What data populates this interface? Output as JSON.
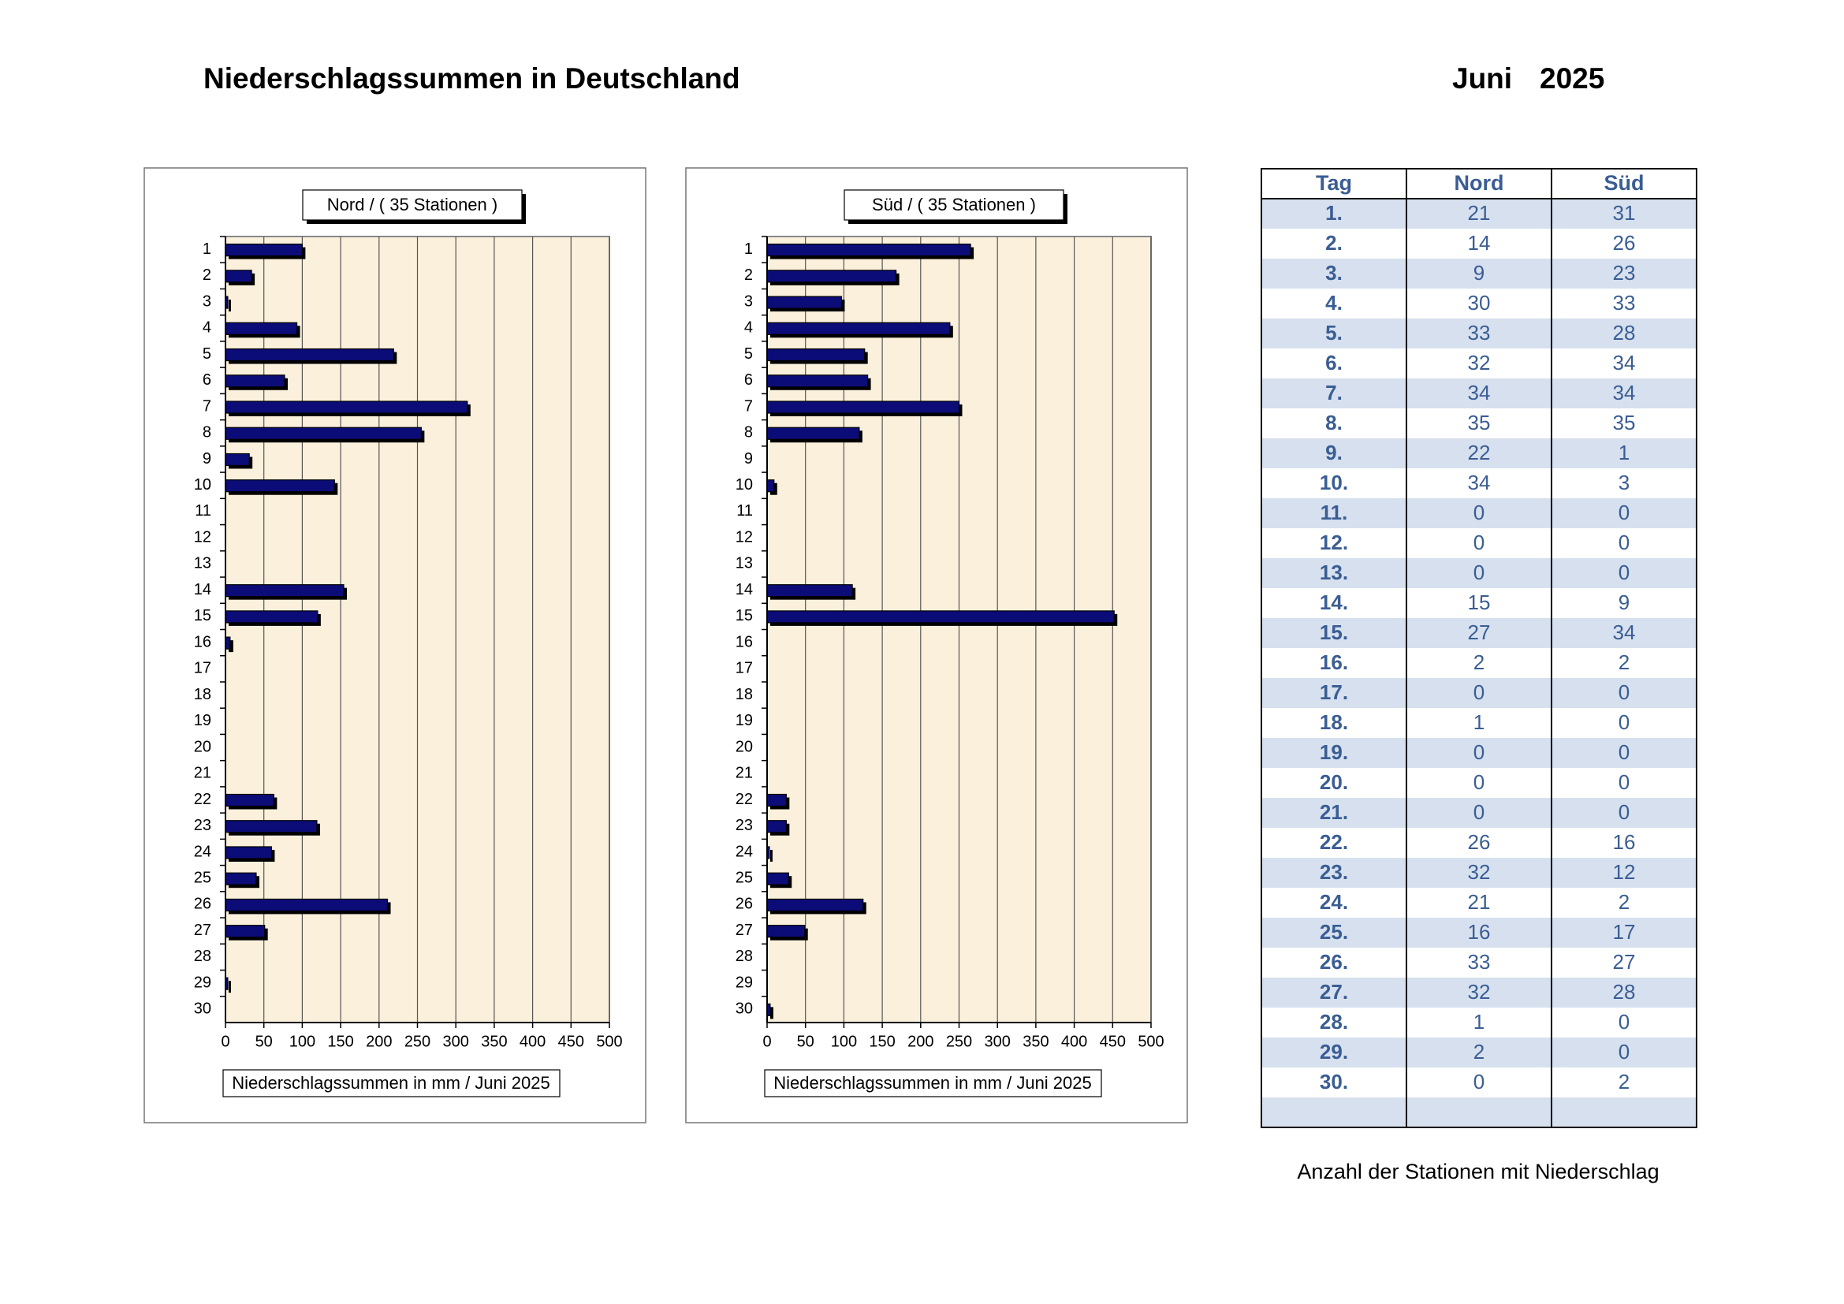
{
  "header": {
    "title": "Niederschlagssummen in Deutschland",
    "month": "Juni",
    "year": "2025"
  },
  "chart_data": [
    {
      "type": "bar",
      "orientation": "horizontal",
      "title": "Nord  /  ( 35 Stationen )",
      "x_label": "Niederschlagssummen in mm / Juni 2025",
      "categories": [
        "1",
        "2",
        "3",
        "4",
        "5",
        "6",
        "7",
        "8",
        "9",
        "10",
        "11",
        "12",
        "13",
        "14",
        "15",
        "16",
        "17",
        "18",
        "19",
        "20",
        "21",
        "22",
        "23",
        "24",
        "25",
        "26",
        "27",
        "28",
        "29",
        "30"
      ],
      "values": [
        100,
        34,
        3,
        93,
        219,
        77,
        315,
        255,
        31,
        142,
        0,
        0,
        0,
        154,
        120,
        6,
        0,
        0,
        0,
        0,
        0,
        63,
        119,
        60,
        40,
        211,
        51,
        0,
        3,
        0
      ],
      "color": "#0c0c78",
      "xlim": [
        0,
        500
      ],
      "xticks": [
        0,
        50,
        100,
        150,
        200,
        250,
        300,
        350,
        400,
        450,
        500
      ],
      "grid": true
    },
    {
      "type": "bar",
      "orientation": "horizontal",
      "title": "Süd  /  ( 35 Stationen )",
      "x_label": "Niederschlagssummen in mm / Juni 2025",
      "categories": [
        "1",
        "2",
        "3",
        "4",
        "5",
        "6",
        "7",
        "8",
        "9",
        "10",
        "11",
        "12",
        "13",
        "14",
        "15",
        "16",
        "17",
        "18",
        "19",
        "20",
        "21",
        "22",
        "23",
        "24",
        "25",
        "26",
        "27",
        "28",
        "29",
        "30"
      ],
      "values": [
        265,
        168,
        97,
        238,
        127,
        131,
        250,
        120,
        0,
        9,
        0,
        0,
        0,
        111,
        452,
        0,
        0,
        0,
        0,
        0,
        0,
        25,
        25,
        3,
        28,
        125,
        49,
        0,
        0,
        4
      ],
      "color": "#0c0c78",
      "xlim": [
        0,
        500
      ],
      "xticks": [
        0,
        50,
        100,
        150,
        200,
        250,
        300,
        350,
        400,
        450,
        500
      ],
      "grid": true
    }
  ],
  "table": {
    "columns": [
      "Tag",
      "Nord",
      "Süd"
    ],
    "rows": [
      [
        "1.",
        21,
        31
      ],
      [
        "2.",
        14,
        26
      ],
      [
        "3.",
        9,
        23
      ],
      [
        "4.",
        30,
        33
      ],
      [
        "5.",
        33,
        28
      ],
      [
        "6.",
        32,
        34
      ],
      [
        "7.",
        34,
        34
      ],
      [
        "8.",
        35,
        35
      ],
      [
        "9.",
        22,
        1
      ],
      [
        "10.",
        34,
        3
      ],
      [
        "11.",
        0,
        0
      ],
      [
        "12.",
        0,
        0
      ],
      [
        "13.",
        0,
        0
      ],
      [
        "14.",
        15,
        9
      ],
      [
        "15.",
        27,
        34
      ],
      [
        "16.",
        2,
        2
      ],
      [
        "17.",
        0,
        0
      ],
      [
        "18.",
        1,
        0
      ],
      [
        "19.",
        0,
        0
      ],
      [
        "20.",
        0,
        0
      ],
      [
        "21.",
        0,
        0
      ],
      [
        "22.",
        26,
        16
      ],
      [
        "23.",
        32,
        12
      ],
      [
        "24.",
        21,
        2
      ],
      [
        "25.",
        16,
        17
      ],
      [
        "26.",
        33,
        27
      ],
      [
        "27.",
        32,
        28
      ],
      [
        "28.",
        1,
        0
      ],
      [
        "29.",
        2,
        0
      ],
      [
        "30.",
        0,
        2
      ]
    ]
  },
  "caption": "Anzahl der Stationen mit Niederschlag"
}
